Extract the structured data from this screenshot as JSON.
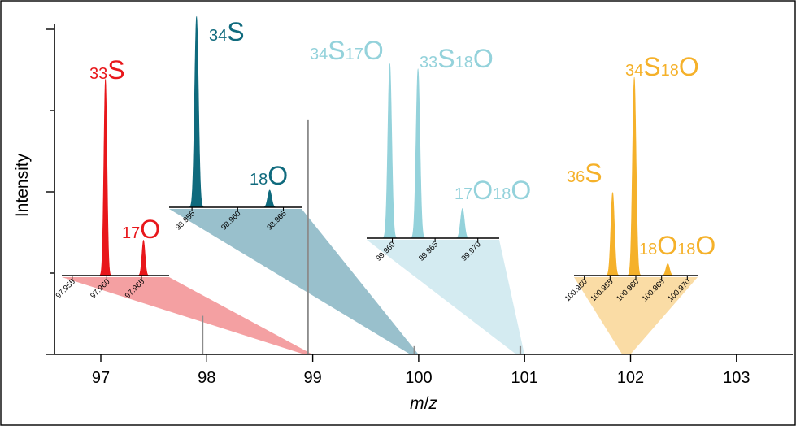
{
  "chart_data": {
    "type": "line",
    "xlabel": "m/z",
    "ylabel": "Intensity",
    "xlim": [
      96.6,
      103.5
    ],
    "x_ticks": [
      "97",
      "98",
      "99",
      "100",
      "101",
      "102",
      "103"
    ],
    "main_spectrum": [
      {
        "x": 97.96,
        "y": 0.14
      },
      {
        "x": 98.955,
        "y": 0.85
      },
      {
        "x": 99.96,
        "y": 0.03
      },
      {
        "x": 100.96,
        "y": 0.03
      }
    ],
    "insets": [
      {
        "id": "m98",
        "color": "#e8171b",
        "fill": "#f4a0a2",
        "nominal_mz": 98,
        "xlim": [
          97.9535,
          97.969
        ],
        "ticks": [
          "97.955",
          "97.960",
          "97.965"
        ],
        "peaks": [
          {
            "x": 97.9598,
            "y": 1.0,
            "label": "33S"
          },
          {
            "x": 97.9653,
            "y": 0.18,
            "label": "17O"
          }
        ]
      },
      {
        "id": "m99",
        "color": "#0f6a7d",
        "fill": "#99c0cc",
        "nominal_mz": 99,
        "xlim": [
          98.9525,
          98.967
        ],
        "ticks": [
          "98.955",
          "98.960",
          "98.965"
        ],
        "peaks": [
          {
            "x": 98.9555,
            "y": 1.0,
            "label": "34S"
          },
          {
            "x": 98.9635,
            "y": 0.09,
            "label": "18O"
          }
        ]
      },
      {
        "id": "m100",
        "color": "#94d2db",
        "fill": "#d4ebf1",
        "nominal_mz": 100,
        "xlim": [
          99.957,
          99.9725
        ],
        "ticks": [
          "99.960",
          "99.965",
          "99.970"
        ],
        "peaks": [
          {
            "x": 99.9597,
            "y": 1.0,
            "label": "34S17O"
          },
          {
            "x": 99.963,
            "y": 0.97,
            "label": "33S18O"
          },
          {
            "x": 99.9682,
            "y": 0.17,
            "label": "17O18O"
          }
        ]
      },
      {
        "id": "m101",
        "color": "#f5b12a",
        "fill": "#fadca5",
        "nominal_mz": 101,
        "xlim": [
          100.948,
          100.972
        ],
        "ticks": [
          "100.950",
          "100.955",
          "100.960",
          "100.965",
          "100.970"
        ],
        "peaks": [
          {
            "x": 100.9555,
            "y": 0.42,
            "label": "36S"
          },
          {
            "x": 100.9597,
            "y": 1.0,
            "label": "34S18O"
          },
          {
            "x": 100.9662,
            "y": 0.06,
            "label": "18O18O"
          }
        ]
      }
    ]
  },
  "labels": {
    "m98_a_mass": "33",
    "m98_a_el": "S",
    "m98_b_mass": "17",
    "m98_b_el": "O",
    "m99_a_mass": "34",
    "m99_a_el": "S",
    "m99_b_mass": "18",
    "m99_b_el": "O",
    "m100_a_m1": "34",
    "m100_a_e1": "S",
    "m100_a_m2": "17",
    "m100_a_e2": "O",
    "m100_b_m1": "33",
    "m100_b_e1": "S",
    "m100_b_m2": "18",
    "m100_b_e2": "O",
    "m100_c_m1": "17",
    "m100_c_e1": "O",
    "m100_c_m2": "18",
    "m100_c_e2": "O",
    "m101_a_mass": "36",
    "m101_a_el": "S",
    "m101_b_m1": "34",
    "m101_b_e1": "S",
    "m101_b_m2": "18",
    "m101_b_e2": "O",
    "m101_c_m1": "18",
    "m101_c_e1": "O",
    "m101_c_m2": "18",
    "m101_c_e2": "O"
  },
  "axes": {
    "xlabel_italic_m": "m",
    "xlabel_slash": "/",
    "xlabel_italic_z": "z",
    "ylabel": "Intensity"
  }
}
